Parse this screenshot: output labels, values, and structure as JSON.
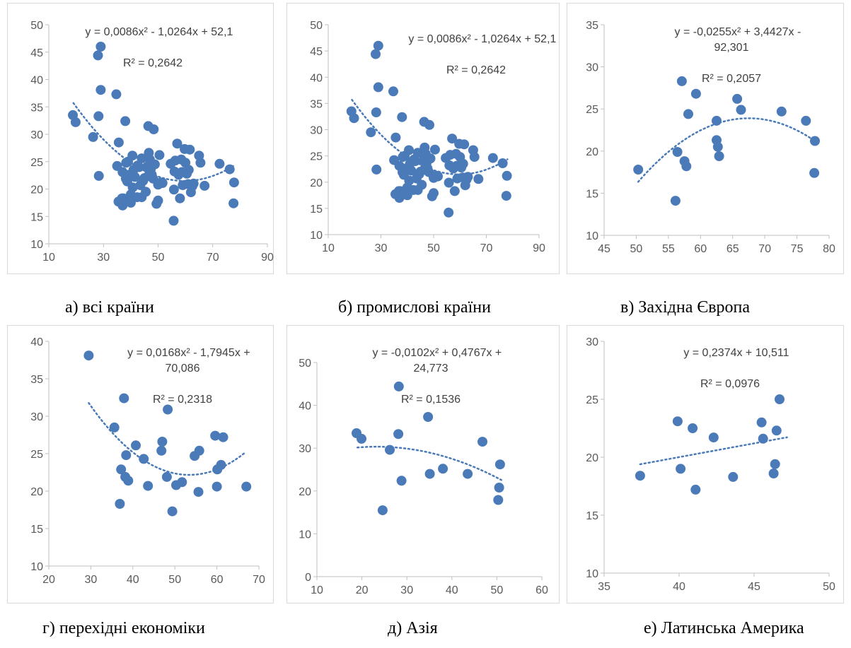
{
  "colors": {
    "point": "#4a7ab8",
    "trend": "#4a7ab8",
    "axis": "#bfbfbf",
    "text": "#595959"
  },
  "chart_data": [
    {
      "type": "scatter",
      "caption": "а) всі країни",
      "equation": "y = 0,0086x² - 1,0264x + 52,1",
      "r2": "R² = 0,2642",
      "xlim": [
        10,
        90
      ],
      "ylim": [
        10,
        50
      ],
      "xticks": [
        "10",
        "30",
        "50",
        "70",
        "90"
      ],
      "yticks": [
        "10",
        "15",
        "20",
        "25",
        "30",
        "35",
        "40",
        "45",
        "50"
      ],
      "trend": {
        "kind": "poly2",
        "coef": [
          0.0086,
          -1.0264,
          52.1
        ],
        "xrange": [
          19,
          78
        ]
      },
      "points": [
        [
          18.8,
          33.5
        ],
        [
          19.8,
          32.2
        ],
        [
          26.2,
          29.5
        ],
        [
          28,
          44.4
        ],
        [
          28.2,
          33.3
        ],
        [
          28.3,
          22.4
        ],
        [
          29,
          46
        ],
        [
          29,
          38.1
        ],
        [
          34.7,
          37.3
        ],
        [
          35,
          24.2
        ],
        [
          35.5,
          17.7
        ],
        [
          35.6,
          28.5
        ],
        [
          36.8,
          18.3
        ],
        [
          37,
          17
        ],
        [
          37,
          23.1
        ],
        [
          37.3,
          18.3
        ],
        [
          38,
          32.4
        ],
        [
          38.2,
          21.9
        ],
        [
          38.3,
          24.8
        ],
        [
          38.7,
          21.4
        ],
        [
          39,
          25
        ],
        [
          39.5,
          22.6
        ],
        [
          40,
          17.5
        ],
        [
          40,
          19
        ],
        [
          40.6,
          26.1
        ],
        [
          40.7,
          20.3
        ],
        [
          41,
          23.5
        ],
        [
          41.5,
          22.2
        ],
        [
          42.3,
          18.5
        ],
        [
          42.5,
          24.3
        ],
        [
          43,
          24
        ],
        [
          43.5,
          20.7
        ],
        [
          44,
          25.6
        ],
        [
          44,
          18.5
        ],
        [
          44.5,
          21.5
        ],
        [
          45,
          22
        ],
        [
          45.5,
          19.5
        ],
        [
          46,
          24.1
        ],
        [
          46.4,
          31.5
        ],
        [
          46.6,
          26.6
        ],
        [
          46.8,
          22.8
        ],
        [
          47,
          25.4
        ],
        [
          47.3,
          23.6
        ],
        [
          47.7,
          22.6
        ],
        [
          48.2,
          21.9
        ],
        [
          48.4,
          30.9
        ],
        [
          48.8,
          24.5
        ],
        [
          49.4,
          17.3
        ],
        [
          50,
          17.9
        ],
        [
          50,
          20.8
        ],
        [
          50.5,
          26.2
        ],
        [
          51,
          21.2
        ],
        [
          51.6,
          21.1
        ],
        [
          54.6,
          24.6
        ],
        [
          55.7,
          14.2
        ],
        [
          55.8,
          19.9
        ],
        [
          56,
          23.2
        ],
        [
          56.3,
          25.2
        ],
        [
          57,
          28.3
        ],
        [
          57.5,
          22.6
        ],
        [
          58,
          18.3
        ],
        [
          58.5,
          25.4
        ],
        [
          58.7,
          23.1
        ],
        [
          59,
          20.7
        ],
        [
          59.7,
          27.3
        ],
        [
          60,
          24.8
        ],
        [
          60.5,
          22.8
        ],
        [
          61,
          20.9
        ],
        [
          61.2,
          23.5
        ],
        [
          61.6,
          27.2
        ],
        [
          62,
          19.4
        ],
        [
          62.5,
          20.5
        ],
        [
          63,
          21
        ],
        [
          65,
          26.1
        ],
        [
          65.5,
          24.8
        ],
        [
          67,
          20.6
        ],
        [
          72.5,
          24.6
        ],
        [
          76.2,
          23.6
        ],
        [
          77.6,
          17.4
        ],
        [
          77.8,
          21.2
        ]
      ]
    },
    {
      "type": "scatter",
      "caption": "б) промислові країни",
      "equation": "y = 0,0086x² - 1,0264x + 52,1",
      "r2": "R² = 0,2642",
      "xlim": [
        10,
        90
      ],
      "ylim": [
        10,
        50
      ],
      "xticks": [
        "10",
        "30",
        "50",
        "70",
        "90"
      ],
      "yticks": [
        "10",
        "15",
        "20",
        "25",
        "30",
        "35",
        "40",
        "45",
        "50"
      ],
      "trend": {
        "kind": "poly2",
        "coef": [
          0.0086,
          -1.0264,
          52.1
        ],
        "xrange": [
          19,
          78
        ]
      },
      "points": [
        [
          18.8,
          33.5
        ],
        [
          19.8,
          32.2
        ],
        [
          26.2,
          29.5
        ],
        [
          28,
          44.4
        ],
        [
          28.2,
          33.3
        ],
        [
          28.3,
          22.4
        ],
        [
          29,
          46
        ],
        [
          29,
          38.1
        ],
        [
          34.7,
          37.3
        ],
        [
          35,
          24.2
        ],
        [
          35.5,
          17.7
        ],
        [
          35.6,
          28.5
        ],
        [
          36.8,
          18.3
        ],
        [
          37,
          17
        ],
        [
          37,
          23.1
        ],
        [
          37.3,
          18.3
        ],
        [
          38,
          32.4
        ],
        [
          38.2,
          21.9
        ],
        [
          38.3,
          24.8
        ],
        [
          38.7,
          21.4
        ],
        [
          39,
          25
        ],
        [
          39.5,
          22.6
        ],
        [
          40,
          17.5
        ],
        [
          40,
          19
        ],
        [
          40.6,
          26.1
        ],
        [
          40.7,
          20.3
        ],
        [
          41,
          23.5
        ],
        [
          41.5,
          22.2
        ],
        [
          42.3,
          18.5
        ],
        [
          42.5,
          24.3
        ],
        [
          43,
          24
        ],
        [
          43.5,
          20.7
        ],
        [
          44,
          25.6
        ],
        [
          44,
          18.5
        ],
        [
          44.5,
          21.5
        ],
        [
          45,
          22
        ],
        [
          45.5,
          19.5
        ],
        [
          46,
          24.1
        ],
        [
          46.4,
          31.5
        ],
        [
          46.6,
          26.6
        ],
        [
          46.8,
          22.8
        ],
        [
          47,
          25.4
        ],
        [
          47.3,
          23.6
        ],
        [
          47.7,
          22.6
        ],
        [
          48.2,
          21.9
        ],
        [
          48.4,
          30.9
        ],
        [
          48.8,
          24.5
        ],
        [
          49.4,
          17.3
        ],
        [
          50,
          17.9
        ],
        [
          50,
          20.8
        ],
        [
          50.5,
          26.2
        ],
        [
          51,
          21.2
        ],
        [
          51.6,
          21.1
        ],
        [
          54.6,
          24.6
        ],
        [
          55.7,
          14.2
        ],
        [
          55.8,
          19.9
        ],
        [
          56,
          23.2
        ],
        [
          56.3,
          25.2
        ],
        [
          57,
          28.3
        ],
        [
          57.5,
          22.6
        ],
        [
          58,
          18.3
        ],
        [
          58.5,
          25.4
        ],
        [
          58.7,
          23.1
        ],
        [
          59,
          20.7
        ],
        [
          59.7,
          27.3
        ],
        [
          60,
          24.8
        ],
        [
          60.5,
          22.8
        ],
        [
          61,
          20.9
        ],
        [
          61.2,
          23.5
        ],
        [
          61.6,
          27.2
        ],
        [
          62,
          19.4
        ],
        [
          62.5,
          20.5
        ],
        [
          63,
          21
        ],
        [
          65,
          26.1
        ],
        [
          65.5,
          24.8
        ],
        [
          67,
          20.6
        ],
        [
          72.5,
          24.6
        ],
        [
          76.2,
          23.6
        ],
        [
          77.6,
          17.4
        ],
        [
          77.8,
          21.2
        ]
      ]
    },
    {
      "type": "scatter",
      "caption": "в) Західна Європа",
      "equation": "y = -0,0255x² + 3,4427x - 92,301",
      "r2": "R² = 0,2057",
      "xlim": [
        45,
        80
      ],
      "ylim": [
        10,
        35
      ],
      "xticks": [
        "45",
        "50",
        "55",
        "60",
        "65",
        "70",
        "75",
        "80"
      ],
      "yticks": [
        "10",
        "15",
        "20",
        "25",
        "30",
        "35"
      ],
      "trend": {
        "kind": "poly2",
        "coef": [
          -0.0255,
          3.4427,
          -92.301
        ],
        "xrange": [
          50.3,
          77.8
        ]
      },
      "points": [
        [
          50.3,
          17.8
        ],
        [
          56.1,
          14.1
        ],
        [
          56.4,
          19.9
        ],
        [
          57.1,
          28.3
        ],
        [
          57.5,
          18.8
        ],
        [
          57.8,
          18.2
        ],
        [
          58.1,
          24.4
        ],
        [
          59.3,
          26.8
        ],
        [
          62.5,
          23.6
        ],
        [
          62.5,
          21.3
        ],
        [
          62.7,
          20.5
        ],
        [
          62.9,
          19.4
        ],
        [
          65.7,
          26.2
        ],
        [
          66.3,
          24.9
        ],
        [
          72.6,
          24.7
        ],
        [
          76.4,
          23.6
        ],
        [
          77.7,
          17.4
        ],
        [
          77.8,
          21.2
        ]
      ]
    },
    {
      "type": "scatter",
      "caption": "г) перехідні економіки",
      "equation": "y = 0,0168x² - 1,7945x +\n70,086",
      "r2": "R² = 0,2318",
      "xlim": [
        20,
        70
      ],
      "ylim": [
        10,
        40
      ],
      "xticks": [
        "20",
        "30",
        "40",
        "50",
        "60",
        "70"
      ],
      "yticks": [
        "10",
        "15",
        "20",
        "25",
        "30",
        "35",
        "40"
      ],
      "trend": {
        "kind": "poly2",
        "coef": [
          0.0168,
          -1.7945,
          70.086
        ],
        "xrange": [
          29.5,
          66.5
        ]
      },
      "points": [
        [
          29.5,
          38.1
        ],
        [
          35.6,
          28.5
        ],
        [
          36.9,
          18.3
        ],
        [
          37.2,
          22.9
        ],
        [
          37.9,
          32.4
        ],
        [
          38.2,
          21.9
        ],
        [
          38.4,
          24.8
        ],
        [
          38.9,
          21.4
        ],
        [
          40.7,
          26.1
        ],
        [
          42.6,
          24.3
        ],
        [
          43.6,
          20.7
        ],
        [
          46.8,
          25.4
        ],
        [
          47.0,
          26.6
        ],
        [
          48.1,
          21.9
        ],
        [
          48.3,
          30.9
        ],
        [
          49.4,
          17.3
        ],
        [
          50.3,
          20.8
        ],
        [
          51.7,
          21.2
        ],
        [
          54.7,
          24.7
        ],
        [
          55.6,
          19.9
        ],
        [
          55.8,
          25.4
        ],
        [
          59.6,
          27.4
        ],
        [
          60.0,
          20.6
        ],
        [
          60.1,
          22.9
        ],
        [
          61.0,
          23.5
        ],
        [
          61.5,
          27.2
        ],
        [
          67.0,
          20.6
        ]
      ]
    },
    {
      "type": "scatter",
      "caption": "д) Азія",
      "equation": "y = -0,0102x² + 0,4767x +\n24,773",
      "r2": "R² = 0,1536",
      "xlim": [
        10,
        60
      ],
      "ylim": [
        0,
        50
      ],
      "xticks": [
        "10",
        "20",
        "30",
        "40",
        "50",
        "60"
      ],
      "yticks": [
        "0",
        "10",
        "20",
        "30",
        "40",
        "50"
      ],
      "trend": {
        "kind": "poly2",
        "coef": [
          -0.0102,
          0.4767,
          24.773
        ],
        "xrange": [
          19,
          51
        ]
      },
      "points": [
        [
          18.8,
          33.5
        ],
        [
          19.9,
          32.2
        ],
        [
          24.6,
          15.5
        ],
        [
          26.2,
          29.6
        ],
        [
          28.1,
          33.3
        ],
        [
          28.2,
          44.4
        ],
        [
          28.8,
          22.4
        ],
        [
          34.7,
          37.3
        ],
        [
          35.1,
          24.0
        ],
        [
          38.0,
          25.2
        ],
        [
          43.5,
          24.0
        ],
        [
          46.8,
          31.5
        ],
        [
          50.3,
          17.9
        ],
        [
          50.5,
          20.8
        ],
        [
          50.7,
          26.2
        ]
      ]
    },
    {
      "type": "scatter",
      "caption": "е) Латинська Америка",
      "equation": "y = 0,2374x + 10,511",
      "r2": "R² = 0,0976",
      "xlim": [
        35,
        50
      ],
      "ylim": [
        10,
        30
      ],
      "xticks": [
        "35",
        "40",
        "45",
        "50"
      ],
      "yticks": [
        "10",
        "15",
        "20",
        "25",
        "30"
      ],
      "trend": {
        "kind": "linear",
        "coef": [
          0.2374,
          10.511
        ],
        "xrange": [
          37.4,
          47.2
        ]
      },
      "points": [
        [
          37.4,
          18.4
        ],
        [
          39.9,
          23.1
        ],
        [
          40.1,
          19.0
        ],
        [
          40.9,
          22.5
        ],
        [
          41.1,
          17.2
        ],
        [
          42.3,
          21.7
        ],
        [
          43.6,
          18.3
        ],
        [
          45.5,
          23.0
        ],
        [
          45.6,
          21.6
        ],
        [
          46.3,
          18.6
        ],
        [
          46.4,
          19.4
        ],
        [
          46.5,
          22.3
        ],
        [
          46.7,
          25.0
        ]
      ]
    }
  ]
}
